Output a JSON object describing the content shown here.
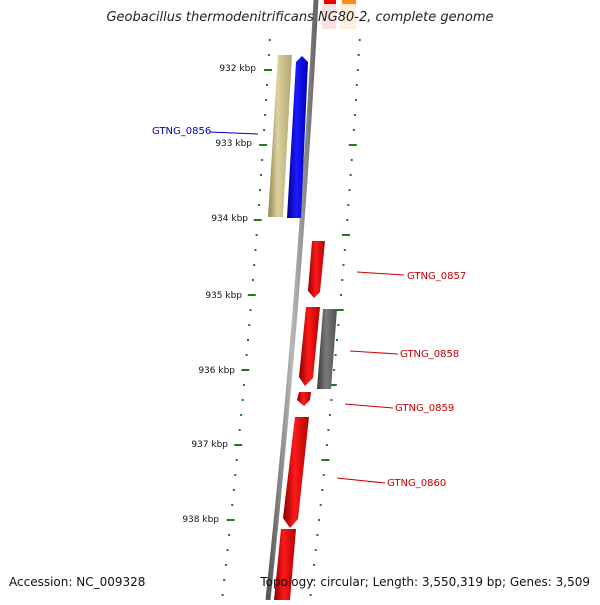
{
  "title": "Geobacillus thermodenitrificans NG80-2, complete genome",
  "footer": {
    "accession": "Accession: NC_009328",
    "summary": "Topology: circular; Length: 3,550,319 bp; Genes: 3,509"
  },
  "ticks": [
    {
      "label": "932 kbp"
    },
    {
      "label": "933 kbp"
    },
    {
      "label": "934 kbp"
    },
    {
      "label": "935 kbp"
    },
    {
      "label": "936 kbp"
    },
    {
      "label": "937 kbp"
    },
    {
      "label": "938 kbp"
    }
  ],
  "genes": [
    {
      "label": "GTNG_0856",
      "color": "#0000cc"
    },
    {
      "label": "GTNG_0857",
      "color": "#cc0000"
    },
    {
      "label": "GTNG_0858",
      "color": "#cc0000"
    },
    {
      "label": "GTNG_0859",
      "color": "#cc0000"
    },
    {
      "label": "GTNG_0860",
      "color": "#cc0000"
    }
  ],
  "colors": {
    "backbone": "#8a8a8a",
    "tick": "#1f7a1f",
    "forward_gene": "#0000ff",
    "reverse_gene": "#ee0000",
    "other_feature": "#666666",
    "tan_feature": "#c8bd80"
  }
}
